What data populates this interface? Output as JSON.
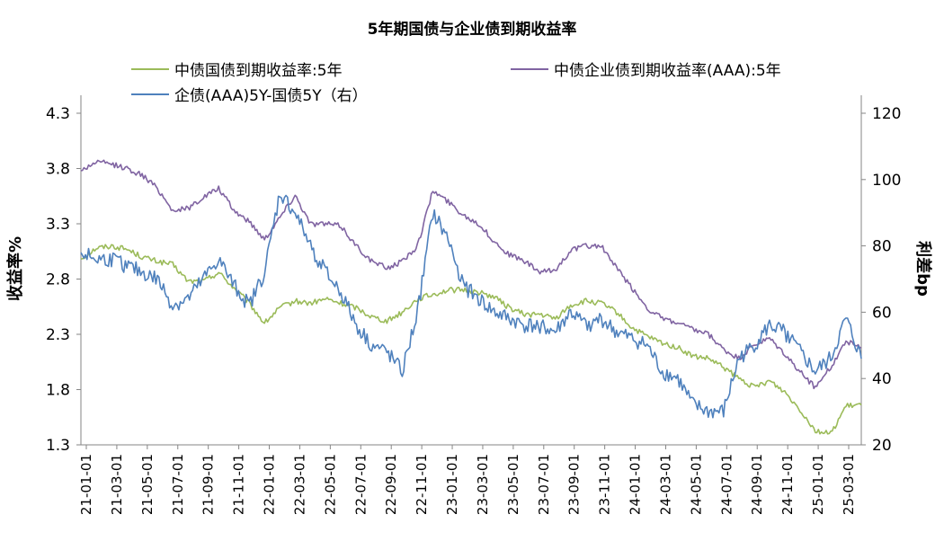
{
  "chart_data": {
    "type": "line",
    "title": "5年期国债与企业债到期收益率",
    "ylabel": "收益率%",
    "ylabel_right": "利差bp",
    "ylim": [
      1.3,
      4.3
    ],
    "ylim_right": [
      20,
      120
    ],
    "yticks": [
      "1.3",
      "1.8",
      "2.3",
      "2.8",
      "3.3",
      "3.8",
      "4.3"
    ],
    "yticks_right": [
      "20",
      "40",
      "60",
      "80",
      "100",
      "120"
    ],
    "xticks": [
      "21-01-01",
      "21-03-01",
      "21-05-01",
      "21-07-01",
      "21-09-01",
      "21-11-01",
      "22-01-01",
      "22-03-01",
      "22-05-01",
      "22-07-01",
      "22-09-01",
      "22-11-01",
      "23-01-01",
      "23-03-01",
      "23-05-01",
      "23-07-01",
      "23-09-01",
      "23-11-01",
      "24-01-01",
      "24-03-01",
      "24-05-01",
      "24-07-01",
      "24-09-01",
      "24-11-01",
      "25-01-01",
      "25-03-01"
    ],
    "legend_position": "top",
    "grid": false,
    "x": [
      "2021-01",
      "2021-02",
      "2021-03",
      "2021-04",
      "2021-05",
      "2021-06",
      "2021-07",
      "2021-08",
      "2021-09",
      "2021-10",
      "2021-11",
      "2021-12",
      "2022-01",
      "2022-02",
      "2022-03",
      "2022-04",
      "2022-05",
      "2022-06",
      "2022-07",
      "2022-08",
      "2022-09",
      "2022-10",
      "2022-11",
      "2022-12",
      "2023-01",
      "2023-02",
      "2023-03",
      "2023-04",
      "2023-05",
      "2023-06",
      "2023-07",
      "2023-08",
      "2023-09",
      "2023-10",
      "2023-11",
      "2023-12",
      "2024-01",
      "2024-02",
      "2024-03",
      "2024-04",
      "2024-05",
      "2024-06",
      "2024-07",
      "2024-08",
      "2024-09",
      "2024-10",
      "2024-11",
      "2024-12",
      "2025-01",
      "2025-02",
      "2025-03",
      "2025-04"
    ],
    "series": [
      {
        "name": "中债国债到期收益率:5年",
        "color": "#9bbb59",
        "axis": "left",
        "values": [
          2.98,
          3.08,
          3.1,
          3.07,
          3.0,
          2.96,
          2.93,
          2.78,
          2.78,
          2.86,
          2.72,
          2.58,
          2.4,
          2.54,
          2.6,
          2.58,
          2.62,
          2.58,
          2.54,
          2.46,
          2.42,
          2.5,
          2.62,
          2.66,
          2.7,
          2.7,
          2.68,
          2.64,
          2.54,
          2.48,
          2.48,
          2.44,
          2.56,
          2.6,
          2.58,
          2.5,
          2.36,
          2.28,
          2.22,
          2.18,
          2.1,
          2.08,
          2.0,
          1.9,
          1.82,
          1.88,
          1.78,
          1.62,
          1.43,
          1.4,
          1.65,
          1.66
        ]
      },
      {
        "name": "中债企业债到期收益率(AAA):5年",
        "color": "#8064a2",
        "axis": "left",
        "values": [
          3.78,
          3.86,
          3.84,
          3.8,
          3.74,
          3.62,
          3.42,
          3.44,
          3.54,
          3.62,
          3.42,
          3.32,
          3.16,
          3.36,
          3.56,
          3.3,
          3.3,
          3.28,
          3.1,
          2.96,
          2.9,
          2.96,
          3.1,
          3.6,
          3.5,
          3.38,
          3.3,
          3.14,
          3.02,
          2.96,
          2.86,
          2.88,
          3.06,
          3.1,
          3.1,
          2.9,
          2.72,
          2.54,
          2.44,
          2.4,
          2.34,
          2.3,
          2.16,
          2.08,
          2.2,
          2.26,
          2.12,
          1.96,
          1.82,
          2.0,
          2.24,
          2.18
        ]
      },
      {
        "name": "企债(AAA)5Y-国债5Y（右）",
        "color": "#4f81bd",
        "axis": "right",
        "values": [
          78,
          76,
          76,
          74,
          72,
          70,
          62,
          64,
          70,
          76,
          68,
          62,
          72,
          96,
          90,
          80,
          72,
          66,
          56,
          50,
          48,
          42,
          60,
          90,
          82,
          68,
          64,
          60,
          58,
          56,
          56,
          54,
          60,
          56,
          58,
          54,
          52,
          50,
          42,
          40,
          32,
          30,
          30,
          46,
          50,
          56,
          54,
          48,
          42,
          46,
          58,
          46
        ]
      }
    ]
  }
}
